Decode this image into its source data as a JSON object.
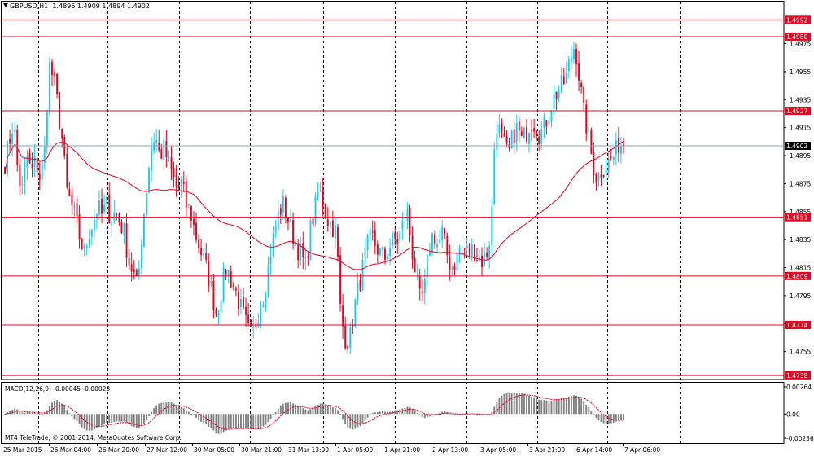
{
  "header": {
    "symbol": "GBPUSD,H1",
    "ohlc": "1.4896 1.4909 1.4894 1.4902"
  },
  "macd": {
    "label": "MACD(12,26,9) -0.00045 -0.00023",
    "scale_labels": [
      "0.00264",
      "0.00",
      "-0.00236"
    ],
    "scale_values": [
      0.00264,
      0.0,
      -0.00236
    ]
  },
  "copyright": "MT4 TeleTrade, © 2001-2014, MetaQuotes Software Corp.",
  "colors": {
    "bull": "#1ec8f0",
    "bear": "#e8001c",
    "level_line": "#e8001c",
    "ma_line": "#e8001c",
    "current_line": "#8aa0b4",
    "grid": "#000000",
    "hist": "#808080",
    "signal": "#e8001c",
    "level_tag_bg": "#e8001c",
    "current_tag_bg": "#000000"
  },
  "chart_data": {
    "type": "candlestick",
    "y_ticks": [
      "1.4975",
      "1.4955",
      "1.4935",
      "1.4915",
      "1.4895",
      "1.4875",
      "1.4855",
      "1.4835",
      "1.4815",
      "1.4795",
      "1.4775",
      "1.4755"
    ],
    "y_tick_values": [
      1.4975,
      1.4955,
      1.4935,
      1.4915,
      1.4895,
      1.4875,
      1.4855,
      1.4835,
      1.4815,
      1.4795,
      1.4775,
      1.4755
    ],
    "ylim": [
      1.4735,
      1.5005
    ],
    "levels": [
      {
        "label": "1.4992",
        "value": 1.4992
      },
      {
        "label": "1.4980",
        "value": 1.498
      },
      {
        "label": "1.4927",
        "value": 1.4927
      },
      {
        "label": "1.4851",
        "value": 1.4851
      },
      {
        "label": "1.4809",
        "value": 1.4809
      },
      {
        "label": "1.4774",
        "value": 1.4774
      },
      {
        "label": "1.4738",
        "value": 1.4738
      }
    ],
    "current_price": {
      "label": "1.4902",
      "value": 1.4902
    },
    "x_labels": [
      "25 Mar 2015",
      "26 Mar 04:00",
      "26 Mar 20:00",
      "27 Mar 12:00",
      "30 Mar 05:00",
      "30 Mar 21:00",
      "31 Mar 13:00",
      "1 Apr 05:00",
      "1 Apr 21:00",
      "2 Apr 13:00",
      "3 Apr 05:00",
      "3 Apr 21:00",
      "6 Apr 14:00",
      "7 Apr 06:00"
    ],
    "close_path": [
      1.489,
      1.4905,
      1.492,
      1.488,
      1.487,
      1.4895,
      1.4882,
      1.4892,
      1.4878,
      1.4898,
      1.496,
      1.495,
      1.493,
      1.4905,
      1.487,
      1.486,
      1.485,
      1.4835,
      1.4825,
      1.484,
      1.4848,
      1.4858,
      1.4852,
      1.486,
      1.485,
      1.4855,
      1.4848,
      1.484,
      1.482,
      1.4812,
      1.48,
      1.484,
      1.487,
      1.49,
      1.491,
      1.4895,
      1.49,
      1.489,
      1.488,
      1.487,
      1.4875,
      1.486,
      1.4855,
      1.484,
      1.483,
      1.482,
      1.481,
      1.4795,
      1.478,
      1.48,
      1.4815,
      1.4808,
      1.48,
      1.479,
      1.478,
      1.477,
      1.4765,
      1.478,
      1.479,
      1.48,
      1.4825,
      1.484,
      1.4855,
      1.486,
      1.485,
      1.484,
      1.483,
      1.4825,
      1.4815,
      1.484,
      1.4855,
      1.487,
      1.4862,
      1.485,
      1.4845,
      1.484,
      1.478,
      1.4765,
      1.4762,
      1.4785,
      1.48,
      1.4815,
      1.483,
      1.4838,
      1.483,
      1.4825,
      1.4822,
      1.483,
      1.4835,
      1.4835,
      1.4845,
      1.4855,
      1.483,
      1.481,
      1.479,
      1.48,
      1.483,
      1.484,
      1.483,
      1.484,
      1.4825,
      1.4815,
      1.482,
      1.483,
      1.4828,
      1.4825,
      1.483,
      1.4822,
      1.482,
      1.4825,
      1.484,
      1.492,
      1.4912,
      1.4902,
      1.4895,
      1.491,
      1.4915,
      1.4905,
      1.4912,
      1.492,
      1.4918,
      1.491,
      1.4915,
      1.4925,
      1.4935,
      1.494,
      1.4945,
      1.495,
      1.4965,
      1.4975,
      1.495,
      1.4925,
      1.491,
      1.489,
      1.4878,
      1.4885,
      1.4888,
      1.4892,
      1.4895,
      1.4905,
      1.4902
    ]
  }
}
